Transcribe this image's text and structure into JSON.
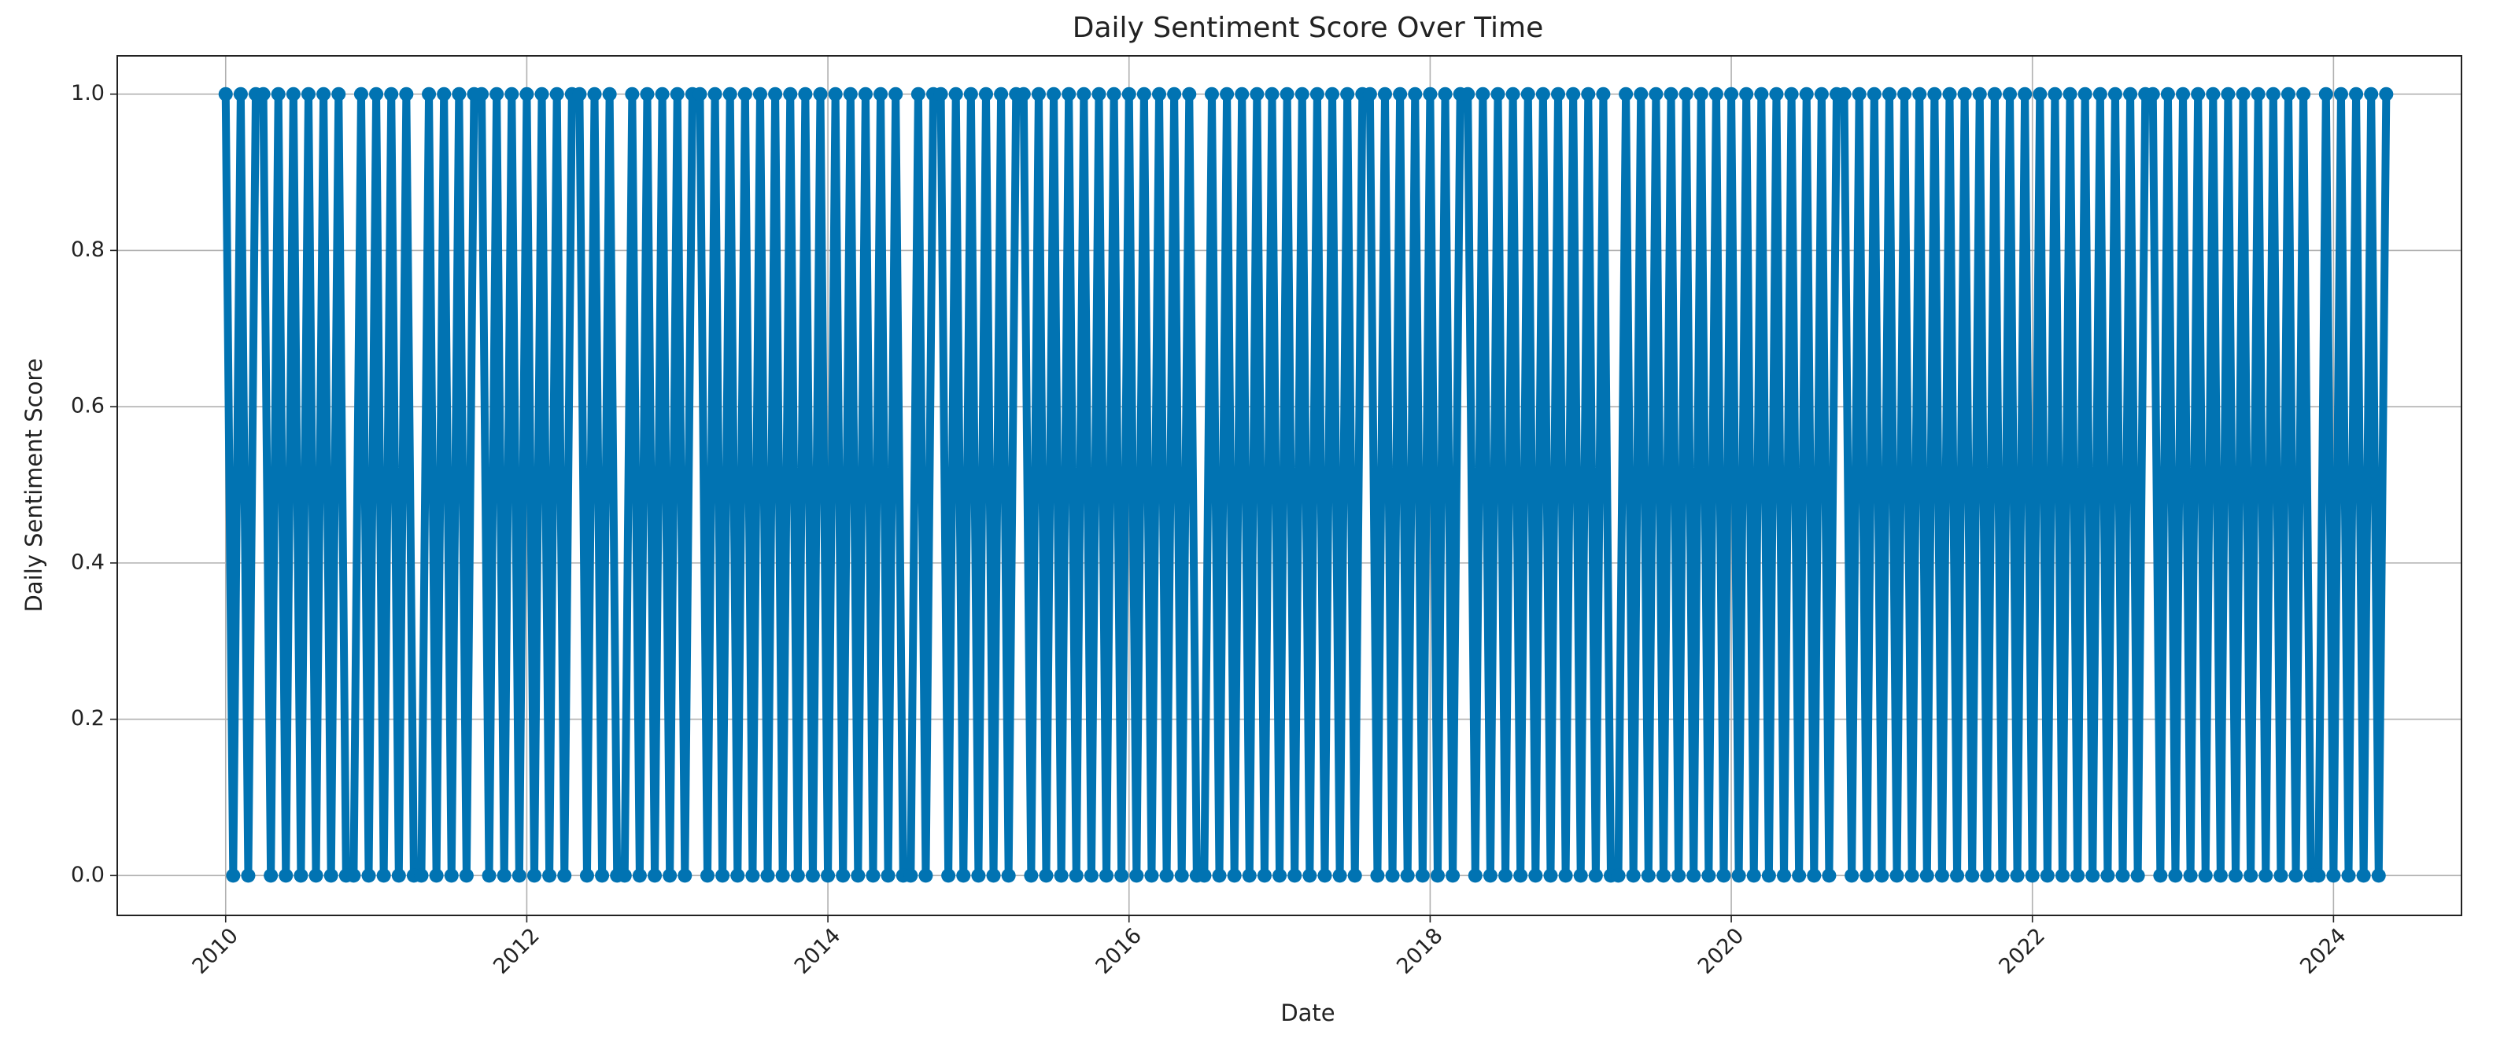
{
  "chart_data": {
    "type": "line",
    "title": "Daily Sentiment Score Over Time",
    "x_label": "Date",
    "y_label": "Daily Sentiment Score",
    "color": "#0173b2",
    "grid": true,
    "xlim": [
      2009.28,
      2024.85
    ],
    "xticks": [
      2010,
      2012,
      2014,
      2016,
      2018,
      2020,
      2022,
      2024
    ],
    "ylim": [
      -0.051,
      1.049
    ],
    "yticks": [
      {
        "value": 0,
        "label": "0.0"
      },
      0.2,
      0.4,
      0.6,
      0.8,
      {
        "value": 1,
        "label": "1.0"
      }
    ],
    "x": [
      2010,
      2010.05,
      2010.1,
      2010.15,
      2010.2,
      2010.25,
      2010.3,
      2010.35,
      2010.4,
      2010.45,
      2010.5,
      2010.55,
      2010.6,
      2010.65,
      2010.7,
      2010.75,
      2010.8,
      2010.85,
      2010.9,
      2010.95,
      2011,
      2011.05,
      2011.1,
      2011.15,
      2011.2,
      2011.25,
      2011.3,
      2011.35,
      2011.4,
      2011.45,
      2011.5,
      2011.55,
      2011.6,
      2011.65,
      2011.7,
      2011.75,
      2011.8,
      2011.85,
      2011.9,
      2011.95,
      2012,
      2012.05,
      2012.1,
      2012.15,
      2012.2,
      2012.25,
      2012.3,
      2012.35,
      2012.4,
      2012.45,
      2012.5,
      2012.55,
      2012.6,
      2012.65,
      2012.7,
      2012.75,
      2012.8,
      2012.85,
      2012.9,
      2012.95,
      2013,
      2013.05,
      2013.1,
      2013.15,
      2013.2,
      2013.25,
      2013.3,
      2013.35,
      2013.4,
      2013.45,
      2013.5,
      2013.55,
      2013.6,
      2013.65,
      2013.7,
      2013.75,
      2013.8,
      2013.85,
      2013.9,
      2013.95,
      2014,
      2014.05,
      2014.1,
      2014.15,
      2014.2,
      2014.25,
      2014.3,
      2014.35,
      2014.4,
      2014.45,
      2014.5,
      2014.55,
      2014.6,
      2014.65,
      2014.7,
      2014.75,
      2014.8,
      2014.85,
      2014.9,
      2014.95,
      2015,
      2015.05,
      2015.1,
      2015.15,
      2015.2,
      2015.25,
      2015.3,
      2015.35,
      2015.4,
      2015.45,
      2015.5,
      2015.55,
      2015.6,
      2015.65,
      2015.7,
      2015.75,
      2015.8,
      2015.85,
      2015.9,
      2015.95,
      2016,
      2016.05,
      2016.1,
      2016.15,
      2016.2,
      2016.25,
      2016.3,
      2016.35,
      2016.4,
      2016.45,
      2016.5,
      2016.55,
      2016.6,
      2016.65,
      2016.7,
      2016.75,
      2016.8,
      2016.85,
      2016.9,
      2016.95,
      2017,
      2017.05,
      2017.1,
      2017.15,
      2017.2,
      2017.25,
      2017.3,
      2017.35,
      2017.4,
      2017.45,
      2017.5,
      2017.55,
      2017.6,
      2017.65,
      2017.7,
      2017.75,
      2017.8,
      2017.85,
      2017.9,
      2017.95,
      2018,
      2018.05,
      2018.1,
      2018.15,
      2018.2,
      2018.25,
      2018.3,
      2018.35,
      2018.4,
      2018.45,
      2018.5,
      2018.55,
      2018.6,
      2018.65,
      2018.7,
      2018.75,
      2018.8,
      2018.85,
      2018.9,
      2018.95,
      2019,
      2019.05,
      2019.1,
      2019.15,
      2019.2,
      2019.25,
      2019.3,
      2019.35,
      2019.4,
      2019.45,
      2019.5,
      2019.55,
      2019.6,
      2019.65,
      2019.7,
      2019.75,
      2019.8,
      2019.85,
      2019.9,
      2019.95,
      2020,
      2020.05,
      2020.1,
      2020.15,
      2020.2,
      2020.25,
      2020.3,
      2020.35,
      2020.4,
      2020.45,
      2020.5,
      2020.55,
      2020.6,
      2020.65,
      2020.7,
      2020.75,
      2020.8,
      2020.85,
      2020.9,
      2020.95,
      2021,
      2021.05,
      2021.1,
      2021.15,
      2021.2,
      2021.25,
      2021.3,
      2021.35,
      2021.4,
      2021.45,
      2021.5,
      2021.55,
      2021.6,
      2021.65,
      2021.7,
      2021.75,
      2021.8,
      2021.85,
      2021.9,
      2021.95,
      2022,
      2022.05,
      2022.1,
      2022.15,
      2022.2,
      2022.25,
      2022.3,
      2022.35,
      2022.4,
      2022.45,
      2022.5,
      2022.55,
      2022.6,
      2022.65,
      2022.7,
      2022.75,
      2022.8,
      2022.85,
      2022.9,
      2022.95,
      2023,
      2023.05,
      2023.1,
      2023.15,
      2023.2,
      2023.25,
      2023.3,
      2023.35,
      2023.4,
      2023.45,
      2023.5,
      2023.55,
      2023.6,
      2023.65,
      2023.7,
      2023.75,
      2023.8,
      2023.85,
      2023.9,
      2023.95,
      2024,
      2024.05,
      2024.1,
      2024.15,
      2024.2,
      2024.25,
      2024.3,
      2024.35
    ],
    "values": [
      1,
      0,
      1,
      0,
      1,
      1,
      0,
      1,
      0,
      1,
      0,
      1,
      0,
      1,
      0,
      1,
      0,
      0,
      1,
      0,
      1,
      0,
      1,
      0,
      1,
      0,
      0,
      1,
      0,
      1,
      0,
      1,
      0,
      1,
      1,
      0,
      1,
      0,
      1,
      0,
      1,
      0,
      1,
      0,
      1,
      0,
      1,
      1,
      0,
      1,
      0,
      1,
      0,
      0,
      1,
      0,
      1,
      0,
      1,
      0,
      1,
      0,
      1,
      1,
      0,
      1,
      0,
      1,
      0,
      1,
      0,
      1,
      0,
      1,
      0,
      1,
      0,
      1,
      0,
      1,
      0,
      1,
      0,
      1,
      0,
      1,
      0,
      1,
      0,
      1,
      0,
      0,
      1,
      0,
      1,
      1,
      0,
      1,
      0,
      1,
      0,
      1,
      0,
      1,
      0,
      1,
      1,
      0,
      1,
      0,
      1,
      0,
      1,
      0,
      1,
      0,
      1,
      0,
      1,
      0,
      1,
      0,
      1,
      0,
      1,
      0,
      1,
      0,
      1,
      0,
      0,
      1,
      0,
      1,
      0,
      1,
      0,
      1,
      0,
      1,
      0,
      1,
      0,
      1,
      0,
      1,
      0,
      1,
      0,
      1,
      0,
      1,
      1,
      0,
      1,
      0,
      1,
      0,
      1,
      0,
      1,
      0,
      1,
      0,
      1,
      1,
      0,
      1,
      0,
      1,
      0,
      1,
      0,
      1,
      0,
      1,
      0,
      1,
      0,
      1,
      0,
      1,
      0,
      1,
      0,
      0,
      1,
      0,
      1,
      0,
      1,
      0,
      1,
      0,
      1,
      0,
      1,
      0,
      1,
      0,
      1,
      0,
      1,
      0,
      1,
      0,
      1,
      0,
      1,
      0,
      1,
      0,
      1,
      0,
      1,
      1,
      0,
      1,
      0,
      1,
      0,
      1,
      0,
      1,
      0,
      1,
      0,
      1,
      0,
      1,
      0,
      1,
      0,
      1,
      0,
      1,
      0,
      1,
      0,
      1,
      0,
      1,
      0,
      1,
      0,
      1,
      0,
      1,
      0,
      1,
      0,
      1,
      0,
      1,
      0,
      1,
      1,
      0,
      1,
      0,
      1,
      0,
      1,
      0,
      1,
      0,
      1,
      0,
      1,
      0,
      1,
      0,
      1,
      0,
      1,
      0,
      1,
      0,
      0,
      1,
      0,
      1,
      0,
      1,
      0,
      1,
      0,
      1
    ]
  }
}
